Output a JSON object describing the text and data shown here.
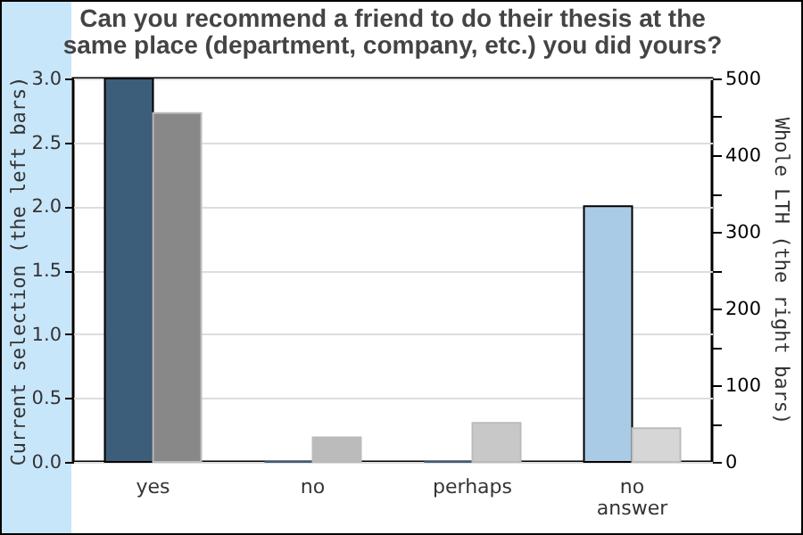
{
  "chart_data": {
    "type": "bar",
    "title": "Can you recommend a friend to do their thesis at the same place (department, company, etc.) you did yours?",
    "ylabel": "Current selection (the left bars)",
    "y2label": "Whole LTH (the right bars)",
    "categories": [
      "yes",
      "no",
      "perhaps",
      "no answer"
    ],
    "series": [
      {
        "colors": [
          "#3d5e7a",
          "#3d5e7a",
          "#3d5e7a",
          "#aacbe6"
        ],
        "values": [
          3,
          0,
          0,
          2
        ]
      },
      {
        "colors": [
          "#888888",
          "#bbbbbb",
          "#c8c8c8",
          "#d6d6d6"
        ],
        "values": [
          455,
          32,
          51,
          44
        ],
        "axis": "y2"
      }
    ],
    "ylim": [
      0,
      3
    ],
    "yticks": [
      {
        "value": 0,
        "label": "0.0"
      },
      {
        "value": 0.5,
        "label": "0.5"
      },
      {
        "value": 1,
        "label": "1.0"
      },
      {
        "value": 1.5,
        "label": "1.5"
      },
      {
        "value": 2,
        "label": "2.0"
      },
      {
        "value": 2.5,
        "label": "2.5"
      },
      {
        "value": 3,
        "label": "3.0"
      }
    ],
    "y2lim": [
      0,
      500
    ],
    "y2ticks": [
      0,
      {
        "value": 50,
        "label": null
      },
      100,
      {
        "value": 150,
        "label": null
      },
      200,
      {
        "value": 250,
        "label": null
      },
      300,
      {
        "value": 350,
        "label": null
      },
      400,
      {
        "value": 450,
        "label": null
      },
      500
    ],
    "grid": "y"
  }
}
